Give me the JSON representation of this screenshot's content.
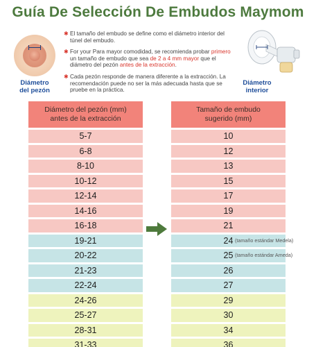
{
  "title": "Guía De Selección De Embudos Maymom",
  "labels": {
    "nipple_diameter": [
      "Diámetro",
      "del pezón"
    ],
    "inner_diameter": [
      "Diámetro",
      "interior"
    ]
  },
  "notes": [
    {
      "text": "El tamaño del embudo se define como el diámetro interior del túnel del embudo."
    },
    {
      "parts": [
        "For your Para mayor comodidad, se recomienda probar ",
        "primero",
        " un tamaño de embudo que sea ",
        "de 2 a 4 mm mayor",
        " que el diámetro del pezón ",
        "antes de la extracción",
        "."
      ]
    },
    {
      "text": "Cada pezón responde de manera diferente a la extracción. La recomendación puede no ser la más adecuada hasta que se pruebe en la práctica."
    }
  ],
  "table": {
    "left_header": [
      "Diámetro del pezón (mm)",
      "antes de la extracción"
    ],
    "right_header": [
      "Tamaño de embudo",
      "sugerido (mm)"
    ],
    "rows": [
      {
        "nipple": "5-7",
        "flange": "10",
        "color": "pink",
        "note": ""
      },
      {
        "nipple": "6-8",
        "flange": "12",
        "color": "pink",
        "note": ""
      },
      {
        "nipple": "8-10",
        "flange": "13",
        "color": "pink",
        "note": ""
      },
      {
        "nipple": "10-12",
        "flange": "15",
        "color": "pink",
        "note": ""
      },
      {
        "nipple": "12-14",
        "flange": "17",
        "color": "pink",
        "note": ""
      },
      {
        "nipple": "14-16",
        "flange": "19",
        "color": "pink",
        "note": ""
      },
      {
        "nipple": "16-18",
        "flange": "21",
        "color": "pink",
        "note": ""
      },
      {
        "nipple": "19-21",
        "flange": "24",
        "color": "blue",
        "note": "(tamaño estándar Medela)"
      },
      {
        "nipple": "20-22",
        "flange": "25",
        "color": "blue",
        "note": "(tamaño estándar Ameda)"
      },
      {
        "nipple": "21-23",
        "flange": "26",
        "color": "blue",
        "note": ""
      },
      {
        "nipple": "22-24",
        "flange": "27",
        "color": "blue",
        "note": ""
      },
      {
        "nipple": "24-26",
        "flange": "29",
        "color": "yellow",
        "note": ""
      },
      {
        "nipple": "25-27",
        "flange": "30",
        "color": "yellow",
        "note": ""
      },
      {
        "nipple": "28-31",
        "flange": "34",
        "color": "yellow",
        "note": ""
      },
      {
        "nipple": "31-33",
        "flange": "36",
        "color": "yellow",
        "note": ""
      }
    ]
  },
  "colors": {
    "title": "#4d7a3e",
    "header": "#f2837a",
    "pink": "#f7c8c3",
    "blue": "#c6e4e6",
    "yellow": "#eef3bd",
    "arrow": "#4e7a3c",
    "accent_red": "#d8342b"
  },
  "icons": {
    "nipple": "nipple-diagram-icon",
    "flange": "breast-pump-flange-icon",
    "arrow": "arrow-right-icon",
    "bullet": "star-bullet-icon"
  }
}
